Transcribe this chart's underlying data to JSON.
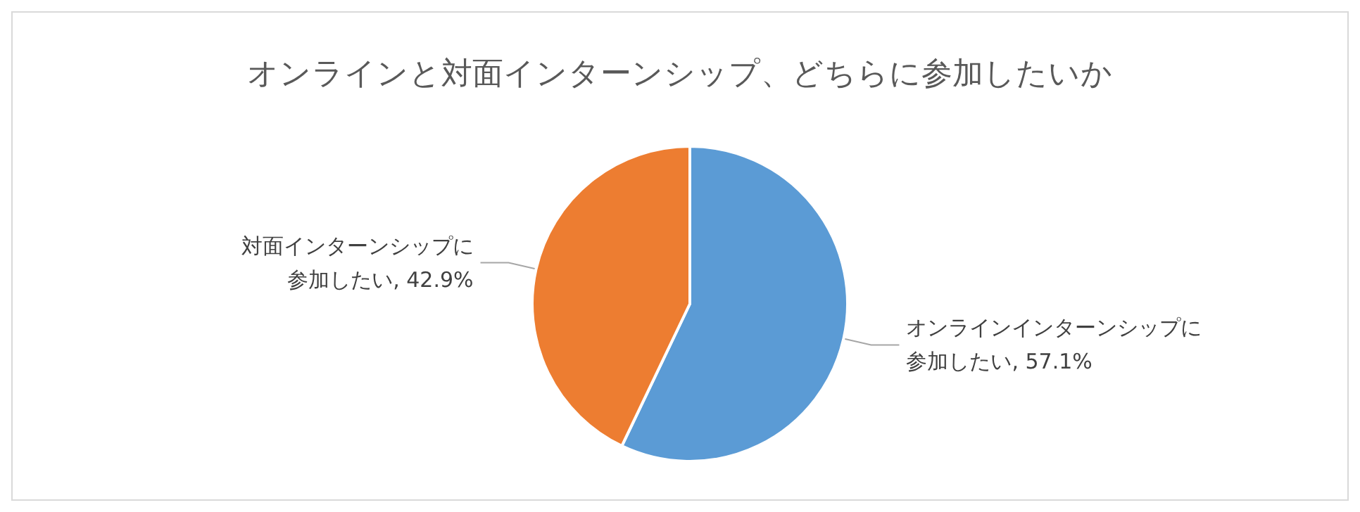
{
  "chart_data": {
    "type": "pie",
    "title": "オンラインと対面インターンシップ、どちらに参加したいか",
    "categories": [
      "オンラインインターンシップに参加したい",
      "対面インターンシップに参加したい"
    ],
    "values": [
      57.1,
      42.9
    ],
    "colors": [
      "#5b9bd5",
      "#ed7d31"
    ],
    "value_labels": [
      "57.1%",
      "42.9%"
    ],
    "legend": false
  }
}
